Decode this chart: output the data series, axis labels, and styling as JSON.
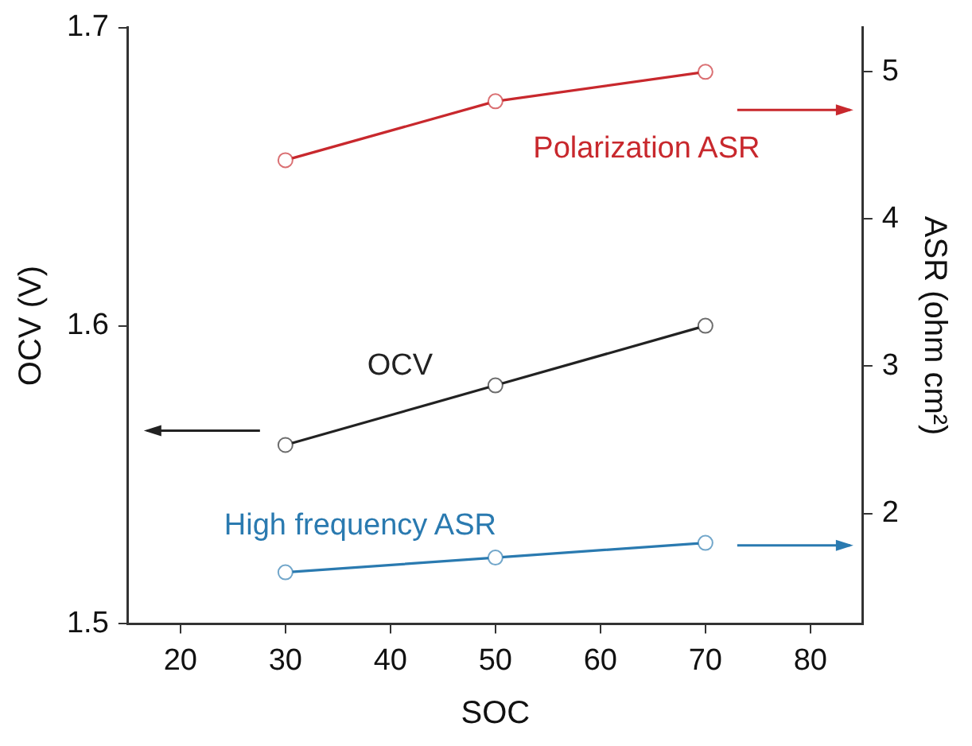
{
  "chart_data": {
    "type": "line",
    "xlabel": "SOC",
    "ylabel": "OCV (V)",
    "y2label": "ASR (ohm cm²)",
    "x": [
      30,
      50,
      70
    ],
    "series": [
      {
        "name": "Polarization ASR",
        "color": "#c8282d",
        "values": [
          4.4,
          4.8,
          5.0
        ],
        "axis": "y2"
      },
      {
        "name": "OCV",
        "color": "#222222",
        "values": [
          1.56,
          1.58,
          1.6
        ]
      },
      {
        "name": "High frequency ASR",
        "color": "#2a7ab0",
        "values": [
          1.6,
          1.7,
          1.8
        ],
        "axis": "y2"
      }
    ],
    "xlim": [
      15,
      85
    ],
    "xticks": [
      20,
      30,
      40,
      50,
      60,
      70,
      80
    ],
    "ylim": [
      1.5,
      1.7
    ],
    "yticks": [
      1.5,
      1.6,
      1.7
    ],
    "y2lim": [
      1.25,
      5.3
    ],
    "y2ticks": [
      2,
      3,
      4,
      5
    ],
    "marker": "circle",
    "line_style": "solid",
    "grid": false,
    "legend": false
  }
}
